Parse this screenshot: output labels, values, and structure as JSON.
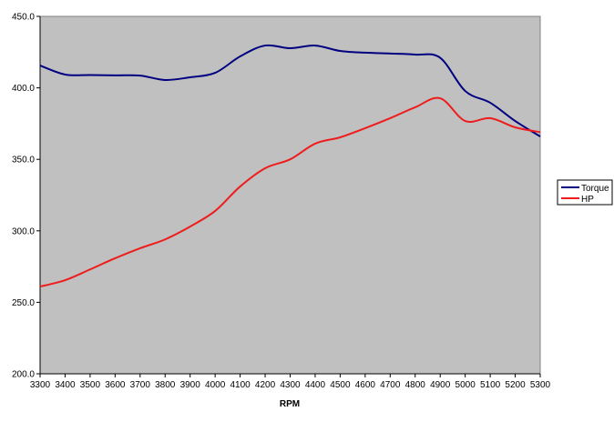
{
  "chart_data": {
    "type": "line",
    "title": "",
    "xlabel": "RPM",
    "ylabel": "",
    "xlim": [
      3300,
      5300
    ],
    "ylim": [
      200,
      450
    ],
    "grid": false,
    "legend_position": "right",
    "x": [
      3300,
      3400,
      3500,
      3600,
      3700,
      3800,
      3900,
      4000,
      4100,
      4200,
      4300,
      4400,
      4500,
      4600,
      4700,
      4800,
      4900,
      5000,
      5100,
      5200,
      5300
    ],
    "x_tick_labels": [
      "3300",
      "3400",
      "3500",
      "3600",
      "3700",
      "3800",
      "3900",
      "4000",
      "4100",
      "4200",
      "4300",
      "4400",
      "4500",
      "4600",
      "4700",
      "4800",
      "4900",
      "5000",
      "5100",
      "5200",
      "5300"
    ],
    "y_ticks": [
      200,
      250,
      300,
      350,
      400,
      450
    ],
    "y_tick_labels": [
      "200.0",
      "250.0",
      "300.0",
      "350.0",
      "400.0",
      "450.0"
    ],
    "series": [
      {
        "name": "Torque",
        "color": "#000080",
        "values": [
          415.6,
          409.3,
          409.0,
          408.7,
          408.6,
          405.5,
          407.4,
          410.5,
          422.0,
          429.6,
          427.7,
          429.6,
          425.8,
          424.6,
          424.0,
          423.3,
          421.0,
          397.8,
          389.6,
          376.8,
          366.0
        ]
      },
      {
        "name": "HP",
        "color": "#ee1c1c",
        "values": [
          261.0,
          265.5,
          273.0,
          280.8,
          287.8,
          294.0,
          303.0,
          313.9,
          331.0,
          343.8,
          350.0,
          361.0,
          365.4,
          371.8,
          378.8,
          386.4,
          392.7,
          376.8,
          378.8,
          372.4,
          369.0
        ]
      }
    ]
  }
}
